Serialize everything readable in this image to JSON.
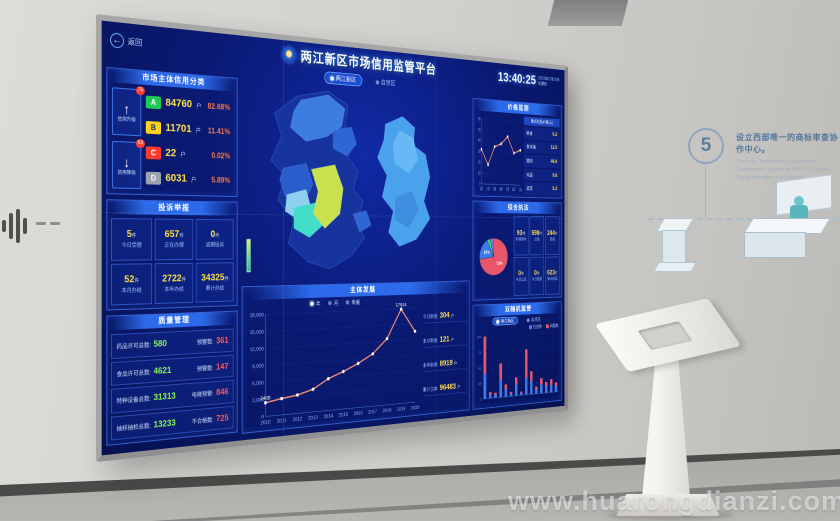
{
  "photo": {
    "watermark": "www.huarongdianzi.com",
    "wall_step": {
      "number": "5",
      "title_zh": "设立西部唯一的商标审查协作中心。",
      "title_en": "The only Trademark Examination Cooperation Center of NIPA in Western China has been established."
    }
  },
  "dashboard": {
    "back_label": "返回",
    "title": "两江新区市场信用监管平台",
    "region_tabs": [
      {
        "label": "两江新区"
      },
      {
        "label": "自贸区"
      }
    ],
    "clock": {
      "time": "13:40:25",
      "date": "2020年07月30日",
      "weekday": "星期四"
    },
    "credit_panel": {
      "title": "市场主体信用分类",
      "upgrade_label": "信用升级",
      "upgrade_badge": "76",
      "downgrade_label": "信用降级",
      "downgrade_badge": "63",
      "rows": [
        {
          "grade": "A",
          "value": "84760",
          "unit": "户",
          "percent": "82.68%",
          "color": "#1ecb5a"
        },
        {
          "grade": "B",
          "value": "11701",
          "unit": "户",
          "percent": "11.41%",
          "color": "#ffd21f"
        },
        {
          "grade": "C",
          "value": "22",
          "unit": "户",
          "percent": "0.02%",
          "color": "#ff3b30"
        },
        {
          "grade": "D",
          "value": "6031",
          "unit": "户",
          "percent": "5.89%",
          "color": "#99a2ac"
        }
      ]
    },
    "complaint_panel": {
      "title": "投诉举报",
      "stats": [
        {
          "value": "5",
          "unit": "件",
          "label": "今日受理"
        },
        {
          "value": "657",
          "unit": "件",
          "label": "正在办理"
        },
        {
          "value": "0",
          "unit": "件",
          "label": "逾期投诉"
        },
        {
          "value": "52",
          "unit": "件",
          "label": "本月办结"
        },
        {
          "value": "2722",
          "unit": "件",
          "label": "本年办结"
        },
        {
          "value": "34325",
          "unit": "件",
          "label": "累计办结"
        }
      ]
    },
    "quality_panel": {
      "title": "质量管理",
      "rows": [
        {
          "left_label": "药品许可总数:",
          "left_value": "580",
          "right_label": "预警数:",
          "right_value": "361"
        },
        {
          "left_label": "食品许可总数:",
          "left_value": "4621",
          "right_label": "预警数:",
          "right_value": "147"
        },
        {
          "left_label": "特种设备总数:",
          "left_value": "31313",
          "right_label": "电梯预警:",
          "right_value": "846"
        },
        {
          "left_label": "抽样抽检总数:",
          "left_value": "13233",
          "right_label": "不合格数:",
          "right_value": "725"
        }
      ]
    },
    "development_panel": {
      "title": "主体发展",
      "mode_options": [
        "年",
        "月",
        "季度"
      ],
      "stats": [
        {
          "label": "今日新增:",
          "value": "304",
          "unit": "户"
        },
        {
          "label": "本月新增:",
          "value": "121",
          "unit": "户"
        },
        {
          "label": "本年新增:",
          "value": "8919",
          "unit": "户"
        },
        {
          "label": "累计主体:",
          "value": "96483",
          "unit": "户"
        }
      ]
    },
    "price_panel": {
      "title": "价格监测",
      "list_header": "重点商品价格(元)",
      "list": [
        {
          "name": "粮食",
          "value": "6.2"
        },
        {
          "name": "食用油",
          "value": "12.5"
        },
        {
          "name": "猪肉",
          "value": "48.6"
        },
        {
          "name": "鸡蛋",
          "value": "9.8"
        },
        {
          "name": "蔬菜",
          "value": "5.2"
        }
      ]
    },
    "enforcement_panel": {
      "title": "综合执法",
      "stats": [
        {
          "value": "93",
          "unit": "件",
          "label": "新增案件"
        },
        {
          "value": "598",
          "unit": "件",
          "label": "立案"
        },
        {
          "value": "244",
          "unit": "件",
          "label": "结案"
        },
        {
          "value": "0",
          "unit": "件",
          "label": "今日立案"
        },
        {
          "value": "0",
          "unit": "件",
          "label": "今日结案"
        },
        {
          "value": "623",
          "unit": "件",
          "label": "累计结案"
        }
      ]
    },
    "inspection_panel": {
      "title": "双随机监管",
      "tabs": [
        {
          "label": "两江新区"
        },
        {
          "label": "自贸区"
        }
      ],
      "legend": [
        {
          "label": "检查数",
          "color": "#3f7ae8"
        },
        {
          "label": "问题数",
          "color": "#e8566b"
        }
      ]
    },
    "accent_colors": {
      "value_yellow": "#ffe14d",
      "good_green": "#8cf55e",
      "warn_red": "#ff5a5a",
      "percent_orange": "#ff7a45"
    }
  },
  "chart_data": [
    {
      "id": "development",
      "type": "line",
      "title": "主体发展",
      "x": [
        "2010",
        "2011",
        "2012",
        "2013",
        "2014",
        "2015",
        "2016",
        "2017",
        "2018",
        "2019",
        "2020"
      ],
      "values": [
        2408,
        2900,
        3300,
        4100,
        5800,
        6900,
        8200,
        9800,
        12500,
        17934,
        13600
      ],
      "point_labels": {
        "0": "2408",
        "9": "17934"
      },
      "ylim": [
        0,
        18000
      ],
      "yticks": [
        0,
        3000,
        6000,
        9000,
        12000,
        15000,
        18000
      ],
      "line_color": "#f08a74"
    },
    {
      "id": "price",
      "type": "line",
      "title": "价格监测",
      "x": [
        "1月",
        "2月",
        "3月",
        "4月",
        "5月",
        "6月",
        "7月"
      ],
      "values": [
        32,
        18,
        35,
        38,
        45,
        30,
        33
      ],
      "ylim": [
        0,
        60
      ],
      "yticks": [
        0,
        10,
        20,
        30,
        40,
        50,
        60
      ],
      "line_color": "#f08a74"
    },
    {
      "id": "enforcement_pie",
      "type": "pie",
      "title": "综合执法",
      "slices": [
        {
          "label": "一般程序",
          "value": 73,
          "color": "#e8566b"
        },
        {
          "label": "简易程序",
          "value": 19,
          "color": "#3f7ae8"
        },
        {
          "label": "其他",
          "value": 4,
          "color": "#35d07a"
        },
        {
          "label": "重大案件",
          "value": 4,
          "color": "#8d6fe8"
        }
      ]
    },
    {
      "id": "inspection",
      "type": "bar",
      "stacked": true,
      "categories": [
        "1",
        "2",
        "3",
        "4",
        "5",
        "6",
        "7",
        "8",
        "9",
        "10",
        "11",
        "12",
        "13",
        "14",
        "15"
      ],
      "series": [
        {
          "name": "检查数",
          "color": "#3f7ae8",
          "values": [
            40,
            6,
            5,
            28,
            12,
            4,
            18,
            4,
            28,
            22,
            7,
            15,
            11,
            13,
            10
          ]
        },
        {
          "name": "问题数",
          "color": "#e8566b",
          "values": [
            60,
            4,
            3,
            27,
            8,
            3,
            12,
            2,
            47,
            16,
            5,
            10,
            7,
            9,
            6
          ]
        }
      ],
      "ylim": [
        0,
        100
      ],
      "yticks": [
        0,
        25,
        50,
        75,
        100
      ]
    },
    {
      "id": "credit_distribution",
      "type": "bar",
      "title": "市场主体信用分类",
      "categories": [
        "A",
        "B",
        "C",
        "D"
      ],
      "values": [
        84760,
        11701,
        22,
        6031
      ],
      "percents": [
        82.68,
        11.41,
        0.02,
        5.89
      ]
    }
  ]
}
